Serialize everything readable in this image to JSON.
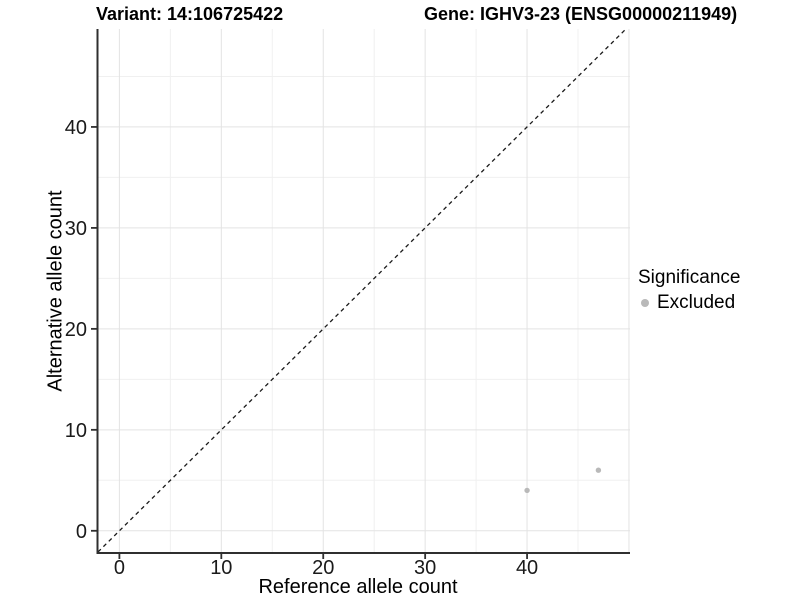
{
  "chart_data": {
    "type": "scatter",
    "titles": {
      "left": "Variant: 14:106725422",
      "right": "Gene: IGHV3-23 (ENSG00000211949)"
    },
    "xlabel": "Reference allele count",
    "ylabel": "Alternative allele count",
    "xlim": [
      -2.1,
      50.1
    ],
    "ylim": [
      -2.2,
      49.7
    ],
    "x_ticks": [
      0,
      10,
      20,
      30,
      40
    ],
    "y_ticks": [
      0,
      10,
      20,
      30,
      40
    ],
    "x_grid_major": [
      0,
      10,
      20,
      30,
      40,
      50
    ],
    "y_grid_major": [
      0,
      10,
      20,
      30,
      40
    ],
    "x_grid_minor": [
      5,
      15,
      25,
      35,
      45
    ],
    "y_grid_minor": [
      5,
      15,
      25,
      35,
      45
    ],
    "grid": true,
    "identity_line": {
      "style": "dashed",
      "equation": "y = x"
    },
    "series": [
      {
        "name": "Excluded",
        "color": "#b9b9b9",
        "points": [
          [
            40,
            4
          ],
          [
            47,
            6
          ]
        ]
      }
    ],
    "legend": {
      "title": "Significance",
      "position": "right",
      "entries": [
        {
          "label": "Excluded",
          "color": "#b9b9b9"
        }
      ]
    },
    "colors": {
      "background": "#ffffff",
      "grid_major": "#e3e3e3",
      "grid_minor": "#f0f0f0",
      "axis_line": "#2f2f2f",
      "tick_label": "#1a1a1a",
      "axis_title": "#000000",
      "title": "#000000",
      "identity_line": "#1a1a1a",
      "point": "#b9b9b9"
    }
  }
}
